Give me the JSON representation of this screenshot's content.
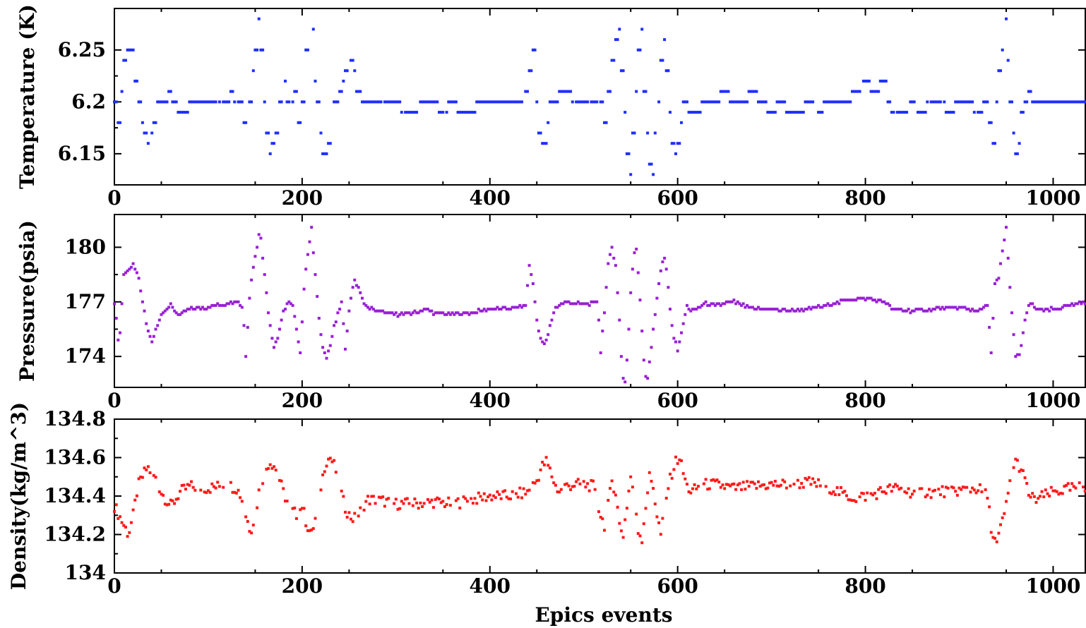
{
  "figure": {
    "xlabel": "Epics events"
  },
  "chart_data": [
    {
      "type": "scatter",
      "ylabel": "Temperature (K)",
      "xlim": [
        0,
        1035
      ],
      "ylim": [
        6.12,
        6.29
      ],
      "xticks": [
        0,
        200,
        400,
        600,
        800,
        1000
      ],
      "xtick_labels": [
        "0",
        "200",
        "400",
        "600",
        "800",
        "1000"
      ],
      "yticks": [
        6.15,
        6.2,
        6.25
      ],
      "ytick_labels": [
        "6.15",
        "6.2",
        "6.25"
      ],
      "y_decimals": 2,
      "color": "#1f2fff",
      "series": [
        {
          "mode": "step",
          "x": [
            0,
            5,
            8,
            12,
            15,
            20,
            24,
            27,
            30,
            33,
            36,
            40,
            44,
            48,
            52,
            56,
            60,
            64,
            70,
            76,
            82,
            88,
            100,
            110,
            120,
            126,
            130,
            136,
            140,
            142,
            145,
            148,
            151,
            154,
            157,
            160,
            163,
            166,
            170,
            174,
            178,
            182,
            186,
            190,
            194,
            198,
            202,
            205,
            208,
            211,
            214,
            217,
            220,
            223,
            226,
            229,
            232,
            235,
            238,
            241,
            244,
            247,
            250,
            253,
            256,
            260,
            265,
            270,
            280,
            300,
            310,
            320,
            330,
            340,
            350,
            360,
            370,
            380,
            390,
            400,
            410,
            420,
            430,
            440,
            444,
            447,
            450,
            453,
            456,
            459,
            462,
            465,
            468,
            471,
            474,
            478,
            482,
            486,
            490,
            500,
            510,
            515,
            520,
            524,
            528,
            532,
            535,
            538,
            541,
            544,
            547,
            550,
            553,
            556,
            559,
            562,
            565,
            568,
            571,
            574,
            577,
            580,
            583,
            586,
            589,
            592,
            595,
            598,
            601,
            604,
            607,
            610,
            614,
            620,
            630,
            640,
            650,
            660,
            670,
            680,
            690,
            700,
            710,
            720,
            730,
            740,
            750,
            760,
            770,
            780,
            790,
            800,
            810,
            820,
            825,
            830,
            840,
            850,
            860,
            870,
            880,
            890,
            900,
            910,
            920,
            930,
            934,
            937,
            940,
            943,
            946,
            949,
            952,
            955,
            958,
            961,
            964,
            967,
            970,
            975,
            980,
            990,
            1000,
            1010,
            1020,
            1035
          ],
          "y": [
            6.2,
            6.18,
            6.21,
            6.24,
            6.25,
            6.25,
            6.22,
            6.2,
            6.18,
            6.17,
            6.16,
            6.17,
            6.18,
            6.2,
            6.2,
            6.2,
            6.21,
            6.2,
            6.19,
            6.19,
            6.2,
            6.2,
            6.2,
            6.2,
            6.2,
            6.21,
            6.2,
            6.2,
            6.18,
            6.15,
            6.2,
            6.23,
            6.25,
            6.28,
            6.25,
            6.2,
            6.17,
            6.15,
            6.16,
            6.17,
            6.2,
            6.22,
            6.2,
            6.2,
            6.21,
            6.18,
            6.2,
            6.25,
            6.28,
            6.27,
            6.22,
            6.2,
            6.17,
            6.15,
            6.15,
            6.16,
            6.18,
            6.2,
            6.2,
            6.21,
            6.22,
            6.23,
            6.24,
            6.24,
            6.23,
            6.21,
            6.2,
            6.2,
            6.2,
            6.2,
            6.19,
            6.19,
            6.2,
            6.2,
            6.19,
            6.2,
            6.19,
            6.19,
            6.2,
            6.2,
            6.2,
            6.2,
            6.2,
            6.21,
            6.23,
            6.25,
            6.2,
            6.17,
            6.16,
            6.16,
            6.18,
            6.2,
            6.2,
            6.2,
            6.21,
            6.21,
            6.21,
            6.21,
            6.2,
            6.2,
            6.2,
            6.2,
            6.2,
            6.18,
            6.21,
            6.24,
            6.26,
            6.27,
            6.23,
            6.19,
            6.15,
            6.13,
            6.17,
            6.21,
            6.25,
            6.27,
            6.21,
            6.17,
            6.14,
            6.13,
            6.17,
            6.2,
            6.24,
            6.26,
            6.23,
            6.19,
            6.16,
            6.15,
            6.16,
            6.18,
            6.2,
            6.2,
            6.19,
            6.19,
            6.2,
            6.2,
            6.21,
            6.2,
            6.2,
            6.21,
            6.2,
            6.19,
            6.2,
            6.19,
            6.19,
            6.2,
            6.19,
            6.2,
            6.2,
            6.2,
            6.21,
            6.22,
            6.21,
            6.22,
            6.2,
            6.19,
            6.19,
            6.2,
            6.19,
            6.2,
            6.2,
            6.19,
            6.2,
            6.2,
            6.19,
            6.2,
            6.18,
            6.16,
            6.2,
            6.23,
            6.25,
            6.28,
            6.24,
            6.2,
            6.17,
            6.15,
            6.16,
            6.19,
            6.2,
            6.21,
            6.2,
            6.2,
            6.2,
            6.2,
            6.2,
            6.2
          ]
        }
      ]
    },
    {
      "type": "scatter",
      "ylabel": "Pressure(psia)",
      "xlim": [
        0,
        1035
      ],
      "ylim": [
        172.3,
        181.8
      ],
      "xticks": [
        0,
        200,
        400,
        600,
        800,
        1000
      ],
      "xtick_labels": [
        "0",
        "200",
        "400",
        "600",
        "800",
        "1000"
      ],
      "yticks": [
        174,
        177,
        180
      ],
      "ytick_labels": [
        "174",
        "177",
        "180"
      ],
      "y_decimals": 1,
      "color": "#9a1fd6",
      "series": [
        {
          "mode": "smooth",
          "x": [
            0,
            5,
            10,
            15,
            20,
            25,
            30,
            35,
            40,
            45,
            50,
            55,
            60,
            65,
            70,
            80,
            100,
            120,
            130,
            137,
            140,
            145,
            150,
            155,
            160,
            165,
            170,
            175,
            180,
            185,
            190,
            195,
            198,
            203,
            207,
            210,
            214,
            218,
            222,
            226,
            230,
            234,
            238,
            242,
            246,
            250,
            255,
            260,
            265,
            270,
            280,
            300,
            320,
            330,
            340,
            360,
            380,
            400,
            420,
            438,
            442,
            446,
            450,
            455,
            460,
            465,
            470,
            475,
            480,
            490,
            500,
            510,
            515,
            518,
            522,
            526,
            530,
            534,
            538,
            541,
            544,
            547,
            550,
            553,
            556,
            559,
            562,
            565,
            568,
            571,
            574,
            577,
            580,
            583,
            586,
            589,
            592,
            596,
            600,
            605,
            610,
            615,
            620,
            630,
            640,
            660,
            680,
            700,
            720,
            740,
            760,
            780,
            800,
            820,
            830,
            850,
            870,
            900,
            920,
            930,
            934,
            938,
            942,
            946,
            950,
            955,
            960,
            965,
            970,
            975,
            980,
            990,
            1000,
            1020,
            1035
          ],
          "y": [
            177.0,
            174.5,
            178.5,
            178.8,
            179.0,
            178.5,
            177.0,
            175.5,
            174.8,
            175.6,
            176.3,
            176.6,
            176.8,
            176.5,
            176.3,
            176.6,
            176.7,
            176.9,
            177.1,
            176.6,
            174.0,
            178.0,
            179.5,
            181.0,
            178.5,
            176.0,
            174.5,
            175.2,
            176.5,
            177.0,
            176.8,
            175.2,
            174.2,
            178.5,
            180.0,
            181.0,
            178.5,
            176.0,
            174.5,
            174.0,
            174.6,
            175.6,
            176.3,
            177.0,
            174.5,
            176.5,
            178.2,
            177.8,
            177.0,
            176.7,
            176.5,
            176.3,
            176.4,
            176.6,
            176.4,
            176.3,
            176.4,
            176.6,
            176.6,
            176.8,
            179.0,
            178.0,
            176.0,
            174.7,
            174.8,
            175.9,
            176.7,
            176.9,
            177.0,
            176.9,
            176.9,
            176.9,
            177.0,
            174.2,
            176.5,
            179.0,
            180.0,
            179.0,
            176.0,
            173.0,
            172.6,
            174.5,
            177.5,
            179.5,
            179.9,
            178.0,
            175.5,
            173.0,
            172.8,
            174.0,
            175.5,
            176.8,
            178.0,
            179.0,
            179.4,
            178.5,
            176.5,
            175.0,
            174.4,
            175.5,
            176.8,
            176.5,
            176.6,
            176.9,
            176.8,
            177.0,
            176.6,
            176.6,
            176.5,
            176.6,
            176.8,
            177.1,
            177.2,
            177.0,
            176.6,
            176.5,
            176.6,
            176.7,
            176.5,
            176.8,
            174.3,
            178.0,
            178.3,
            179.8,
            181.0,
            177.0,
            174.0,
            174.2,
            176.0,
            177.0,
            176.7,
            176.5,
            176.6,
            176.8,
            177.0
          ]
        }
      ]
    },
    {
      "type": "scatter",
      "ylabel": "Density(kg/m^3)",
      "xlim": [
        0,
        1035
      ],
      "ylim": [
        134.0,
        134.8
      ],
      "xticks": [
        0,
        200,
        400,
        600,
        800,
        1000
      ],
      "xtick_labels": [
        "0",
        "200",
        "400",
        "600",
        "800",
        "1000"
      ],
      "yticks": [
        134.0,
        134.2,
        134.4,
        134.6,
        134.8
      ],
      "ytick_labels": [
        "134",
        "134.2",
        "134.4",
        "134.6",
        "134.8"
      ],
      "y_decimals": 3,
      "color": "#ff1a1a",
      "series": [
        {
          "mode": "smooth",
          "x": [
            0,
            5,
            10,
            15,
            20,
            25,
            30,
            35,
            40,
            45,
            50,
            55,
            60,
            65,
            70,
            80,
            100,
            120,
            130,
            135,
            140,
            145,
            150,
            155,
            160,
            165,
            170,
            175,
            180,
            185,
            190,
            195,
            200,
            205,
            210,
            215,
            220,
            225,
            230,
            235,
            240,
            245,
            250,
            255,
            260,
            265,
            270,
            280,
            300,
            320,
            340,
            360,
            380,
            400,
            420,
            440,
            450,
            455,
            460,
            465,
            470,
            475,
            480,
            490,
            500,
            510,
            518,
            522,
            526,
            530,
            534,
            538,
            542,
            546,
            550,
            554,
            558,
            562,
            566,
            570,
            574,
            578,
            582,
            586,
            590,
            594,
            598,
            602,
            606,
            610,
            615,
            620,
            630,
            640,
            660,
            680,
            700,
            720,
            740,
            760,
            780,
            790,
            800,
            810,
            820,
            830,
            850,
            870,
            900,
            920,
            930,
            935,
            940,
            945,
            950,
            955,
            960,
            965,
            970,
            975,
            980,
            990,
            1000,
            1020,
            1035
          ],
          "y": [
            134.35,
            134.3,
            134.25,
            134.2,
            134.3,
            134.45,
            134.5,
            134.55,
            134.52,
            134.48,
            134.42,
            134.38,
            134.35,
            134.38,
            134.42,
            134.45,
            134.44,
            134.46,
            134.44,
            134.4,
            134.3,
            134.22,
            134.3,
            134.45,
            134.52,
            134.58,
            134.56,
            134.5,
            134.42,
            134.36,
            134.32,
            134.3,
            134.35,
            134.25,
            134.2,
            134.3,
            134.45,
            134.58,
            134.6,
            134.55,
            134.45,
            134.35,
            134.3,
            134.28,
            134.3,
            134.35,
            134.38,
            134.38,
            134.36,
            134.36,
            134.37,
            134.36,
            134.38,
            134.4,
            134.4,
            134.42,
            134.48,
            134.55,
            134.58,
            134.52,
            134.45,
            134.42,
            134.45,
            134.46,
            134.46,
            134.45,
            134.3,
            134.25,
            134.35,
            134.48,
            134.42,
            134.25,
            134.2,
            134.35,
            134.5,
            134.4,
            134.22,
            134.18,
            134.35,
            134.5,
            134.45,
            134.3,
            134.2,
            134.32,
            134.45,
            134.52,
            134.58,
            134.6,
            134.52,
            134.45,
            134.42,
            134.44,
            134.46,
            134.46,
            134.44,
            134.45,
            134.46,
            134.46,
            134.47,
            134.45,
            134.4,
            134.39,
            134.4,
            134.41,
            134.43,
            134.44,
            134.42,
            134.42,
            134.43,
            134.44,
            134.4,
            134.2,
            134.15,
            134.25,
            134.35,
            134.5,
            134.58,
            134.55,
            134.48,
            134.4,
            134.38,
            134.4,
            134.42,
            134.44,
            134.45
          ]
        }
      ]
    }
  ]
}
